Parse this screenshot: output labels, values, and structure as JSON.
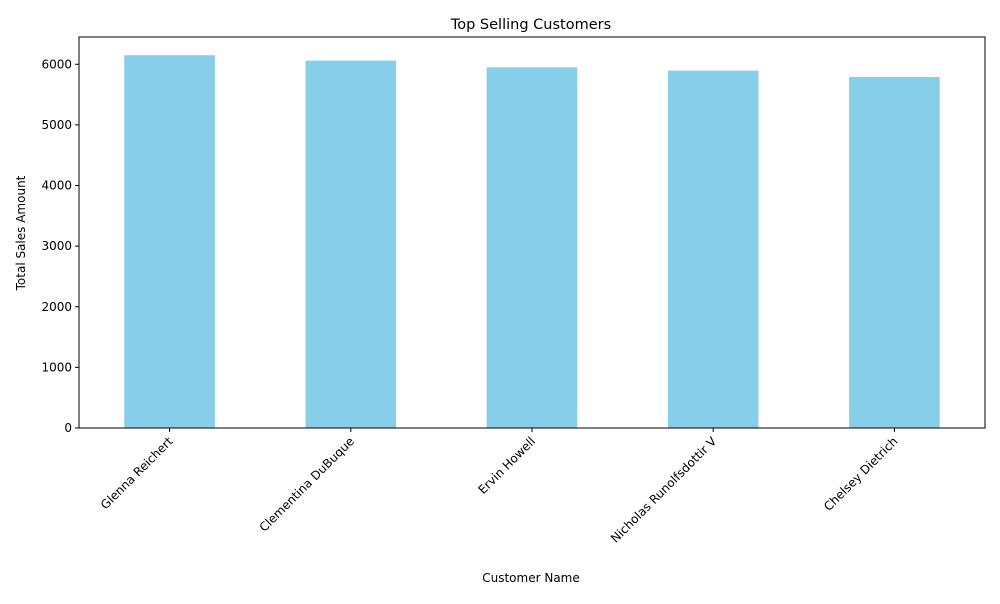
{
  "chart_data": {
    "type": "bar",
    "title": "Top Selling Customers",
    "xlabel": "Customer Name",
    "ylabel": "Total Sales Amount",
    "categories": [
      "Glenna Reichert",
      "Clementina DuBuque",
      "Ervin Howell",
      "Nicholas Runolfsdottir V",
      "Chelsey Dietrich"
    ],
    "values": [
      6150,
      6060,
      5950,
      5895,
      5790
    ],
    "ylim": [
      0,
      6450
    ],
    "yticks": [
      0,
      1000,
      2000,
      3000,
      4000,
      5000,
      6000
    ],
    "grid": false,
    "bar_color": "#87ceeb",
    "x_tick_rotation_deg": 45
  }
}
